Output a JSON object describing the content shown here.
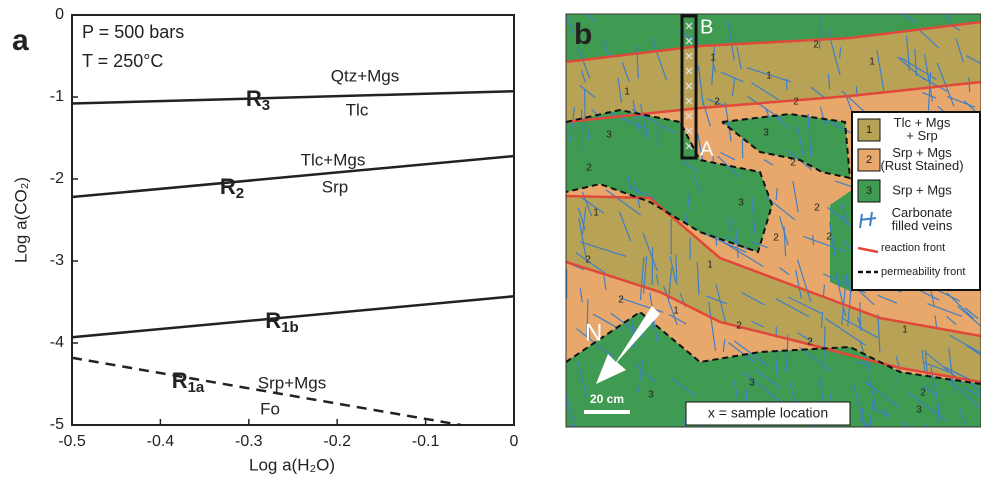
{
  "chart_data": {
    "type": "line",
    "panel_label": "a",
    "annotations": [
      "P = 500 bars",
      "T = 250°C"
    ],
    "x_label": "Log a(H₂O)",
    "y_label": "Log a(CO₂)",
    "xlim": [
      -0.5,
      0
    ],
    "ylim": [
      -5,
      0
    ],
    "xticks": [
      -0.5,
      -0.4,
      -0.3,
      -0.2,
      -0.1,
      0
    ],
    "yticks": [
      0,
      -1,
      -2,
      -3,
      -4,
      -5
    ],
    "series": [
      {
        "label": {
          "main": "R",
          "sub": "3"
        },
        "above": "Qtz+Mgs",
        "below": "Tlc",
        "color": "#222222",
        "dashed": false,
        "x": [
          -0.5,
          0
        ],
        "values": [
          -1.08,
          -0.93
        ]
      },
      {
        "label": {
          "main": "R",
          "sub": "2"
        },
        "above": "Tlc+Mgs",
        "below": "Srp",
        "color": "#222222",
        "dashed": false,
        "x": [
          -0.5,
          0
        ],
        "values": [
          -2.22,
          -1.72
        ]
      },
      {
        "label": {
          "main": "R",
          "sub": "1b"
        },
        "color": "#222222",
        "dashed": false,
        "x": [
          -0.5,
          0
        ],
        "values": [
          -3.93,
          -3.43
        ]
      },
      {
        "label": {
          "main": "R",
          "sub": "1a"
        },
        "above": "Srp+Mgs",
        "below": "Fo",
        "color": "#222222",
        "dashed": true,
        "x": [
          -0.5,
          -0.06
        ],
        "values": [
          -4.18,
          -5
        ]
      }
    ]
  },
  "map_panel": {
    "panel_label": "b",
    "markers": [
      "B",
      "A",
      "N"
    ],
    "scale": "20 cm",
    "sample_note": "x = sample location",
    "zone_labels": [
      "2",
      "1",
      "1",
      "1",
      "1",
      "2",
      "2",
      "3",
      "3",
      "2",
      "2",
      "1",
      "3",
      "2",
      "2",
      "2",
      "1",
      "2",
      "2",
      "1",
      "2",
      "1",
      "2",
      "3",
      "3",
      "2",
      "3"
    ],
    "legend": [
      {
        "key": "1",
        "lines": [
          "Tlc + Mgs",
          "+ Srp"
        ],
        "color": "#b8a255"
      },
      {
        "key": "2",
        "lines": [
          "Srp + Mgs",
          "(Rust Stained)"
        ],
        "color": "#e8a86c"
      },
      {
        "key": "3",
        "lines": [
          "Srp + Mgs"
        ],
        "color": "#3f9a52"
      },
      {
        "key": "",
        "lines": [
          "Carbonate",
          "filled veins"
        ],
        "color": "#3f7fc8"
      },
      {
        "key": "",
        "lines": [
          "reaction front"
        ],
        "color": "#e0483a"
      },
      {
        "key": "",
        "lines": [
          "permeability front"
        ],
        "color": "#111111"
      }
    ]
  }
}
